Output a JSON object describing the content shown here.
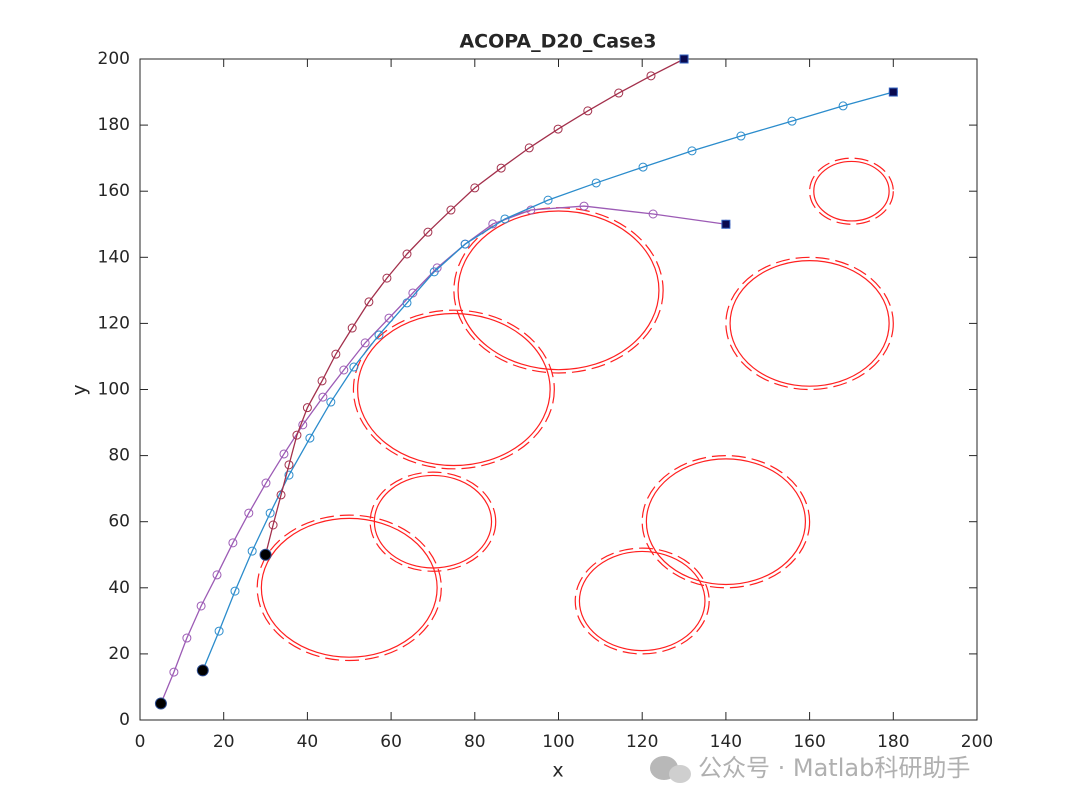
{
  "chart_data": {
    "type": "line",
    "title": "ACOPA_D20_Case3",
    "xlabel": "x",
    "ylabel": "y",
    "xlim": [
      0,
      200
    ],
    "ylim": [
      0,
      200
    ],
    "xticks": [
      0,
      20,
      40,
      60,
      80,
      100,
      120,
      140,
      160,
      180,
      200
    ],
    "yticks": [
      0,
      20,
      40,
      60,
      80,
      100,
      120,
      140,
      160,
      180,
      200
    ],
    "grid": false,
    "series": [
      {
        "color": "#9c5bb5",
        "x": [
          5,
          8.1,
          11.2,
          14.6,
          18.4,
          22.2,
          26,
          30.1,
          34.4,
          38.9,
          43.7,
          48.7,
          53.8,
          59.5,
          65.2,
          71,
          77.7,
          84.3,
          93.4,
          106.1,
          122.6,
          140
        ],
        "y": [
          5,
          14.5,
          24.8,
          34.5,
          43.9,
          53.6,
          62.6,
          71.7,
          80.5,
          89.3,
          97.7,
          105.9,
          114.1,
          121.6,
          129.2,
          136.8,
          144,
          150.1,
          154.3,
          155.5,
          153.1,
          150
        ]
      },
      {
        "color": "#2b8ccc",
        "x": [
          15,
          18.9,
          22.7,
          26.8,
          31.1,
          35.6,
          40.6,
          45.6,
          51.1,
          57.1,
          63.8,
          70.3,
          77.7,
          87.2,
          97.5,
          109,
          120.2,
          131.9,
          143.6,
          155.8,
          168,
          180
        ],
        "y": [
          15,
          26.9,
          39,
          51.1,
          62.6,
          74.1,
          85.3,
          96.2,
          106.8,
          116.5,
          126.2,
          135.6,
          144,
          151.6,
          157.3,
          162.5,
          167.3,
          172.2,
          176.7,
          181.2,
          185.8,
          190
        ]
      },
      {
        "color": "#a3304c",
        "x": [
          30,
          31.8,
          33.7,
          35.6,
          37.5,
          40,
          43.5,
          46.8,
          50.7,
          54.7,
          59,
          63.8,
          68.8,
          74.3,
          80,
          86.3,
          93,
          99.9,
          107,
          114.4,
          122.1,
          130
        ],
        "y": [
          50,
          59,
          68.1,
          77.2,
          86.2,
          94.5,
          102.6,
          110.7,
          118.6,
          126.5,
          133.7,
          141,
          147.6,
          154.3,
          161,
          167,
          173.1,
          178.8,
          184.3,
          189.7,
          194.9,
          200
        ]
      }
    ],
    "obstacle_color": "#ff2020",
    "obstacles": [
      {
        "x": 50,
        "y": 40,
        "r": 21,
        "safety_r": 22
      },
      {
        "x": 70,
        "y": 60,
        "r": 14,
        "safety_r": 15
      },
      {
        "x": 75,
        "y": 100,
        "r": 23,
        "safety_r": 24
      },
      {
        "x": 100,
        "y": 130,
        "r": 24,
        "safety_r": 25
      },
      {
        "x": 160,
        "y": 120,
        "r": 19,
        "safety_r": 20
      },
      {
        "x": 170,
        "y": 160,
        "r": 9,
        "safety_r": 10
      },
      {
        "x": 140,
        "y": 60,
        "r": 19,
        "safety_r": 20
      },
      {
        "x": 120,
        "y": 36,
        "r": 15,
        "safety_r": 16
      }
    ]
  },
  "watermark": "公众号 · Matlab科研助手"
}
